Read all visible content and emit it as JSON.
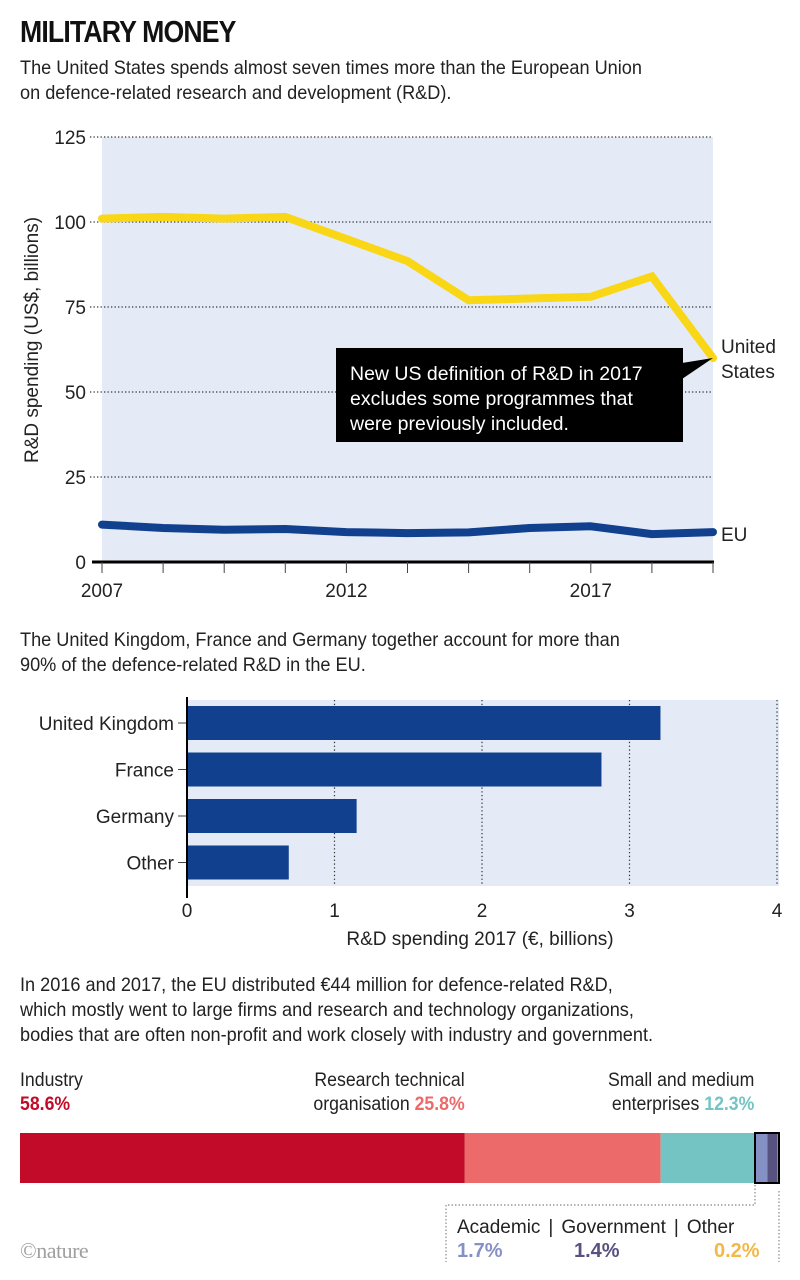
{
  "header": {
    "title": "MILITARY MONEY",
    "subtitle_line1": "The United States spends almost seven times more than the European Union",
    "subtitle_line2": "on defence-related research and development (R&D)."
  },
  "section2": {
    "text_line1": "The United Kingdom, France and Germany together account for more than",
    "text_line2": "90% of the defence-related R&D in the EU."
  },
  "section3": {
    "text_line1": "In 2016 and 2017, the EU distributed €44 million for defence-related R&D,",
    "text_line2": "which mostly went to large firms and research and technology organizations,",
    "text_line3": "bodies that are often non-profit and work closely with industry and government."
  },
  "footer": {
    "copyright": "©nature"
  },
  "colors": {
    "us_line": "#f9d616",
    "eu_line": "#11408f",
    "plot_bg": "#e4ebf6",
    "bar": "#11408f",
    "industry": "#c20b28",
    "rto": "#ec6a6a",
    "sme": "#74c4c4",
    "academic": "#8591c4",
    "government": "#575280",
    "other": "#f3b84a"
  },
  "chart_data": [
    {
      "type": "line",
      "title": "",
      "xlabel": "",
      "ylabel": "R&D spending (US$, billions)",
      "ylim": [
        0,
        125
      ],
      "yticks": [
        0,
        25,
        50,
        75,
        100,
        125
      ],
      "ytick_labels": [
        "0",
        "25",
        "50",
        "75",
        "100",
        "125"
      ],
      "xlim": [
        2007,
        2019.5
      ],
      "xticks": [
        2007,
        2008.25,
        2009.5,
        2010.75,
        2012,
        2013.25,
        2014.5,
        2015.75,
        2017,
        2018.25,
        2019.5
      ],
      "xtick_labels": [
        {
          "value": 2007,
          "label": "2007"
        },
        {
          "value": 2012,
          "label": "2012"
        },
        {
          "value": 2017,
          "label": "2017"
        }
      ],
      "grid": "horizontal-dotted",
      "x": [
        2007,
        2008.25,
        2009.5,
        2010.75,
        2012,
        2013.25,
        2014.5,
        2015.75,
        2017,
        2018.25,
        2019.5
      ],
      "series": [
        {
          "name": "United States",
          "label_line1": "United",
          "label_line2": "States",
          "values": [
            101,
            101.5,
            101,
            101.5,
            95,
            88.5,
            77,
            77.5,
            78,
            84,
            60
          ]
        },
        {
          "name": "EU",
          "label": "EU",
          "values": [
            11,
            10,
            9.5,
            9.7,
            8.8,
            8.5,
            8.7,
            10,
            10.5,
            8.2,
            8.8
          ]
        }
      ],
      "annotation": {
        "line1": "New US definition of R&D in 2017",
        "line2": "excludes some programmes that",
        "line3": "were previously included.",
        "points_to": {
          "series": "United States",
          "x": 2019.5
        }
      }
    },
    {
      "type": "bar",
      "orientation": "horizontal",
      "title": "",
      "xlabel": "R&D spending 2017 (€, billions)",
      "ylabel": "",
      "xlim": [
        0,
        4
      ],
      "xticks": [
        0,
        1,
        2,
        3,
        4
      ],
      "xtick_labels": [
        "0",
        "1",
        "2",
        "3",
        "4"
      ],
      "grid": "vertical-dotted",
      "categories": [
        "United Kingdom",
        "France",
        "Germany",
        "Other"
      ],
      "values": [
        3.21,
        2.81,
        1.15,
        0.69
      ]
    },
    {
      "type": "bar",
      "orientation": "stacked-horizontal",
      "title": "",
      "unit": "%",
      "categories": [
        "Industry",
        "Research technical organisation",
        "Small and medium enterprises",
        "Academic",
        "Government",
        "Other"
      ],
      "values": [
        58.6,
        25.8,
        12.3,
        1.7,
        1.4,
        0.2
      ],
      "labels": [
        {
          "line1": "Industry",
          "pct": "58.6%"
        },
        {
          "line1": "Research technical",
          "line2": "organisation",
          "pct": "25.8%"
        },
        {
          "line1": "Small and medium",
          "line2": "enterprises",
          "pct": "12.3%"
        },
        {
          "line1": "Academic",
          "pct": "1.7%"
        },
        {
          "line1": "Government",
          "pct": "1.4%"
        },
        {
          "line1": "Other",
          "pct": "0.2%"
        }
      ],
      "separator": "|"
    }
  ]
}
